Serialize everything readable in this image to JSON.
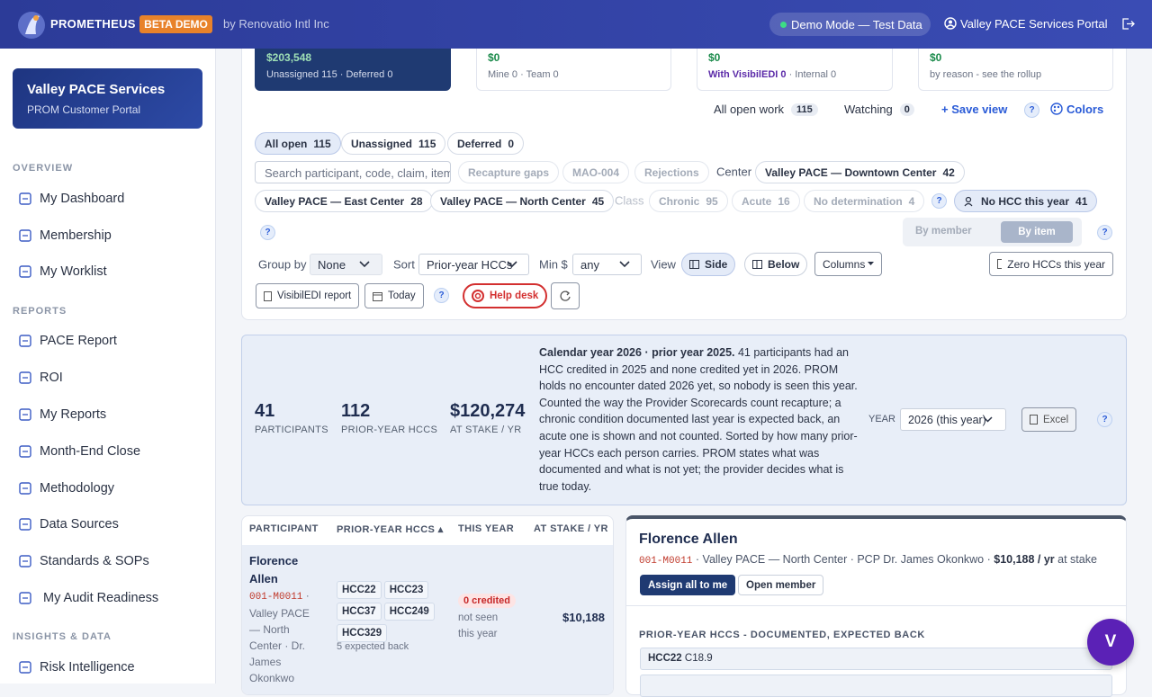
{
  "header": {
    "brand": "PROMETHEUS",
    "badge": "BETA DEMO",
    "byline": "by Renovatio Intl Inc",
    "demo_mode": "Demo Mode — Test Data",
    "portal": "Valley PACE Services Portal"
  },
  "sidebar": {
    "org": {
      "name": "Valley PACE Services",
      "subtitle": "PROM Customer Portal"
    },
    "sections": [
      {
        "label": "OVERVIEW",
        "items": [
          "My Dashboard",
          "Membership",
          "My Worklist"
        ]
      },
      {
        "label": "REPORTS",
        "items": [
          "PACE Report",
          "ROI",
          "My Reports",
          "Month-End Close",
          "Methodology",
          "Data Sources",
          "Standards & SOPs",
          "My Audit Readiness"
        ]
      },
      {
        "label": "INSIGHTS & DATA",
        "items": [
          "Risk Intelligence"
        ]
      }
    ]
  },
  "summary_cards": [
    {
      "amount": "$203,548",
      "detail": [
        "Unassigned 115 · Deferred 0"
      ]
    },
    {
      "amount": "$0",
      "detail": [
        "Mine 0 · Team 0"
      ]
    },
    {
      "amount": "$0",
      "detail": [
        "With VisibilEDI 0",
        "· Internal 0"
      ]
    },
    {
      "amount": "$0",
      "detail": [
        "by reason - see the rollup"
      ]
    }
  ],
  "help": "?",
  "toolbar": {
    "all_open_work": {
      "label": "All open work",
      "count": 115
    },
    "watching": {
      "label": "Watching",
      "count": 0
    },
    "save_view": "+ Save view",
    "colors": "Colors"
  },
  "tabs": [
    {
      "label": "All open",
      "count": 115
    },
    {
      "label": "Unassigned",
      "count": 115
    },
    {
      "label": "Deferred",
      "count": 0
    }
  ],
  "filters": {
    "search_placeholder": "Search participant, code, claim, item",
    "gap_chips": [
      "Recapture gaps",
      "MAO-004",
      "Rejections"
    ],
    "center_label": "Center",
    "centers": [
      {
        "label": "Valley PACE — Downtown Center",
        "count": 42
      },
      {
        "label": "Valley PACE — East Center",
        "count": 28
      },
      {
        "label": "Valley PACE — North Center",
        "count": 45
      }
    ],
    "class_label": "Class",
    "classes": [
      {
        "label": "Chronic",
        "count": 95
      },
      {
        "label": "Acute",
        "count": 16
      },
      {
        "label": "No determination",
        "count": 4
      }
    ],
    "no_hcc": {
      "label": "No HCC this year",
      "count": 41
    }
  },
  "view_toggle": {
    "by_member": "By member",
    "by_item": "By item"
  },
  "controls": {
    "group_by": {
      "label": "Group by",
      "value": "None"
    },
    "sort": {
      "label": "Sort",
      "value": "Prior-year HCCs"
    },
    "min": {
      "label": "Min $",
      "value": "any"
    },
    "view": {
      "label": "View",
      "side": "Side",
      "below": "Below"
    },
    "columns": "Columns",
    "zero_hccs": "Zero HCCs this year",
    "visibiledi_report": "VisibilEDI report",
    "today": "Today",
    "help_desk": "Help desk"
  },
  "recapture": {
    "stats": [
      {
        "value": "41",
        "label": "PARTICIPANTS"
      },
      {
        "value": "112",
        "label": "PRIOR-YEAR HCCS"
      },
      {
        "value": "$120,274",
        "label": "AT STAKE / YR"
      }
    ],
    "note_lead": "Calendar year 2026 · prior year 2025.",
    "note_body": " 41 participants had an HCC credited in 2025 and none credited yet in 2026. PROM holds no encounter dated 2026 yet, so nobody is seen this year. Counted the way the Provider Scorecards count recapture; a chronic condition documented last year is expected back, an acute one is shown and not counted. Sorted by how many prior-year HCCs each person carries. PROM states what was documented and what is not yet; the provider decides what is true today.",
    "year_label": "YEAR",
    "year_value": "2026 (this year)",
    "excel": "Excel"
  },
  "table": {
    "columns": [
      "PARTICIPANT",
      "PRIOR-YEAR HCCS ▴",
      "THIS YEAR",
      "AT STAKE / YR"
    ],
    "rows": [
      {
        "name": "Florence Allen",
        "id": "001-M0011",
        "meta": " · Valley PACE — North Center · Dr. James Okonkwo",
        "hccs": [
          "HCC22",
          "HCC23",
          "HCC37",
          "HCC249",
          "HCC329"
        ],
        "expected": "5 expected back",
        "credited": "0 credited",
        "seen": "not seen this year",
        "at_stake": "$10,188"
      }
    ]
  },
  "detail": {
    "name": "Florence Allen",
    "id": "001-M0011",
    "meta": " · Valley PACE — North Center · PCP Dr. James Okonkwo · ",
    "at_stake": "$10,188 / yr",
    "at_stake_suffix": " at stake",
    "actions": [
      "Assign all to me",
      "Open member"
    ],
    "section_label": "PRIOR-YEAR HCCS - DOCUMENTED, EXPECTED BACK",
    "items": [
      {
        "code": "HCC22",
        "icd": "C18.9"
      }
    ]
  },
  "avatar": "V"
}
